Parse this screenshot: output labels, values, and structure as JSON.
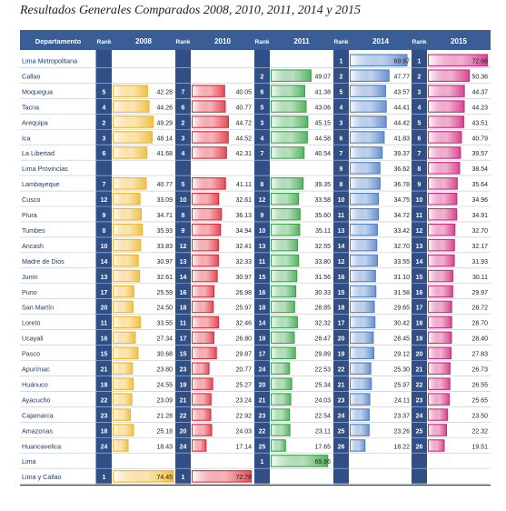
{
  "title": "Resultados Generales Comparados 2008, 2010, 2011, 2014 y 2015",
  "colors": {
    "header_bg": "#3a5d96",
    "header_text": "#ffffff",
    "band": "#2f4f86",
    "row_text": "#1f3a66",
    "2008": "#f0b52a",
    "2010": "#e02c3a",
    "2011": "#3aa548",
    "2014": "#4f7fc6",
    "2015": "#d0287c"
  },
  "chart_data": {
    "type": "table",
    "columns": [
      "Departamento",
      "Rank",
      "2008",
      "Rank",
      "2010",
      "Rank",
      "2011",
      "Rank",
      "2014",
      "Rank",
      "2015"
    ],
    "years": [
      "2008",
      "2010",
      "2011",
      "2014",
      "2015"
    ],
    "scale_max": 75,
    "rows": [
      {
        "name": "Lima Metropolitana",
        "cells": [
          null,
          null,
          null,
          {
            "rank": "1",
            "value": "69.97"
          },
          {
            "rank": "1",
            "value": "72.66"
          }
        ]
      },
      {
        "name": "Callao",
        "cells": [
          null,
          null,
          {
            "rank": "2",
            "value": "49.07"
          },
          {
            "rank": "2",
            "value": "47.77"
          },
          {
            "rank": "2",
            "value": "50.36"
          }
        ]
      },
      {
        "name": "Moquegua",
        "cells": [
          {
            "rank": "5",
            "value": "42.28"
          },
          {
            "rank": "7",
            "value": "40.05"
          },
          {
            "rank": "6",
            "value": "41.38"
          },
          {
            "rank": "5",
            "value": "43.57"
          },
          {
            "rank": "3",
            "value": "44.37"
          }
        ]
      },
      {
        "name": "Tacna",
        "cells": [
          {
            "rank": "4",
            "value": "44.26"
          },
          {
            "rank": "6",
            "value": "40.77"
          },
          {
            "rank": "5",
            "value": "43.06"
          },
          {
            "rank": "4",
            "value": "44.41"
          },
          {
            "rank": "4",
            "value": "44.23"
          }
        ]
      },
      {
        "name": "Arequipa",
        "cells": [
          {
            "rank": "2",
            "value": "49.29"
          },
          {
            "rank": "2",
            "value": "44.72"
          },
          {
            "rank": "3",
            "value": "45.15"
          },
          {
            "rank": "3",
            "value": "44.42"
          },
          {
            "rank": "5",
            "value": "43.51"
          }
        ]
      },
      {
        "name": "Ica",
        "cells": [
          {
            "rank": "3",
            "value": "48.14"
          },
          {
            "rank": "3",
            "value": "44.52"
          },
          {
            "rank": "4",
            "value": "44.58"
          },
          {
            "rank": "6",
            "value": "41.83"
          },
          {
            "rank": "6",
            "value": "40.79"
          }
        ]
      },
      {
        "name": "La Libertad",
        "cells": [
          {
            "rank": "6",
            "value": "41.68"
          },
          {
            "rank": "4",
            "value": "42.31"
          },
          {
            "rank": "7",
            "value": "40.54"
          },
          {
            "rank": "7",
            "value": "39.37"
          },
          {
            "rank": "7",
            "value": "39.57"
          }
        ]
      },
      {
        "name": "Lima Provincias",
        "cells": [
          null,
          null,
          null,
          {
            "rank": "9",
            "value": "36.62"
          },
          {
            "rank": "8",
            "value": "38.54"
          }
        ]
      },
      {
        "name": "Lambayeque",
        "cells": [
          {
            "rank": "7",
            "value": "40.77"
          },
          {
            "rank": "5",
            "value": "41.11"
          },
          {
            "rank": "8",
            "value": "39.35"
          },
          {
            "rank": "8",
            "value": "36.78"
          },
          {
            "rank": "9",
            "value": "35.64"
          }
        ]
      },
      {
        "name": "Cusco",
        "cells": [
          {
            "rank": "12",
            "value": "33.09"
          },
          {
            "rank": "10",
            "value": "32.61"
          },
          {
            "rank": "12",
            "value": "33.58"
          },
          {
            "rank": "10",
            "value": "34.75"
          },
          {
            "rank": "10",
            "value": "34.96"
          }
        ]
      },
      {
        "name": "Piura",
        "cells": [
          {
            "rank": "9",
            "value": "34.71"
          },
          {
            "rank": "8",
            "value": "36.13"
          },
          {
            "rank": "9",
            "value": "35.60"
          },
          {
            "rank": "11",
            "value": "34.72"
          },
          {
            "rank": "11",
            "value": "34.91"
          }
        ]
      },
      {
        "name": "Tumbes",
        "cells": [
          {
            "rank": "8",
            "value": "35.93"
          },
          {
            "rank": "9",
            "value": "34.94"
          },
          {
            "rank": "10",
            "value": "35.11"
          },
          {
            "rank": "13",
            "value": "33.42"
          },
          {
            "rank": "12",
            "value": "32.70"
          }
        ]
      },
      {
        "name": "Ancash",
        "cells": [
          {
            "rank": "10",
            "value": "33.83"
          },
          {
            "rank": "12",
            "value": "32.41"
          },
          {
            "rank": "13",
            "value": "32.55"
          },
          {
            "rank": "14",
            "value": "32.70"
          },
          {
            "rank": "13",
            "value": "32.17"
          }
        ]
      },
      {
        "name": "Madre de Dios",
        "cells": [
          {
            "rank": "14",
            "value": "30.97"
          },
          {
            "rank": "13",
            "value": "32.33"
          },
          {
            "rank": "11",
            "value": "33.80"
          },
          {
            "rank": "12",
            "value": "33.55"
          },
          {
            "rank": "14",
            "value": "31.93"
          }
        ]
      },
      {
        "name": "Junín",
        "cells": [
          {
            "rank": "13",
            "value": "32.61"
          },
          {
            "rank": "14",
            "value": "30.97"
          },
          {
            "rank": "15",
            "value": "31.56"
          },
          {
            "rank": "16",
            "value": "31.10"
          },
          {
            "rank": "15",
            "value": "30.11"
          }
        ]
      },
      {
        "name": "Puno",
        "cells": [
          {
            "rank": "17",
            "value": "25.59"
          },
          {
            "rank": "16",
            "value": "26.98"
          },
          {
            "rank": "16",
            "value": "30.33"
          },
          {
            "rank": "15",
            "value": "31.58"
          },
          {
            "rank": "16",
            "value": "29.97"
          }
        ]
      },
      {
        "name": "San Martín",
        "cells": [
          {
            "rank": "20",
            "value": "24.50"
          },
          {
            "rank": "18",
            "value": "25.97"
          },
          {
            "rank": "18",
            "value": "28.85"
          },
          {
            "rank": "18",
            "value": "29.65"
          },
          {
            "rank": "17",
            "value": "28.72"
          }
        ]
      },
      {
        "name": "Loreto",
        "cells": [
          {
            "rank": "11",
            "value": "33.55"
          },
          {
            "rank": "11",
            "value": "32.46"
          },
          {
            "rank": "14",
            "value": "32.32"
          },
          {
            "rank": "17",
            "value": "30.42"
          },
          {
            "rank": "18",
            "value": "28.70"
          }
        ]
      },
      {
        "name": "Ucayali",
        "cells": [
          {
            "rank": "16",
            "value": "27.34"
          },
          {
            "rank": "17",
            "value": "26.80"
          },
          {
            "rank": "19",
            "value": "28.47"
          },
          {
            "rank": "20",
            "value": "28.45"
          },
          {
            "rank": "19",
            "value": "28.40"
          }
        ]
      },
      {
        "name": "Pasco",
        "cells": [
          {
            "rank": "15",
            "value": "30.68"
          },
          {
            "rank": "15",
            "value": "29.87"
          },
          {
            "rank": "17",
            "value": "29.89"
          },
          {
            "rank": "19",
            "value": "29.12"
          },
          {
            "rank": "20",
            "value": "27.83"
          }
        ]
      },
      {
        "name": "Apurímac",
        "cells": [
          {
            "rank": "21",
            "value": "23.80"
          },
          {
            "rank": "23",
            "value": "20.77"
          },
          {
            "rank": "24",
            "value": "22.53"
          },
          {
            "rank": "22",
            "value": "25.30"
          },
          {
            "rank": "21",
            "value": "26.73"
          }
        ]
      },
      {
        "name": "Huánuco",
        "cells": [
          {
            "rank": "19",
            "value": "24.55"
          },
          {
            "rank": "19",
            "value": "25.27"
          },
          {
            "rank": "20",
            "value": "25.34"
          },
          {
            "rank": "21",
            "value": "25.97"
          },
          {
            "rank": "22",
            "value": "26.55"
          }
        ]
      },
      {
        "name": "Ayacucho",
        "cells": [
          {
            "rank": "22",
            "value": "23.09"
          },
          {
            "rank": "21",
            "value": "23.24"
          },
          {
            "rank": "21",
            "value": "24.03"
          },
          {
            "rank": "23",
            "value": "24.11"
          },
          {
            "rank": "23",
            "value": "25.65"
          }
        ]
      },
      {
        "name": "Cajamarca",
        "cells": [
          {
            "rank": "23",
            "value": "21.28"
          },
          {
            "rank": "22",
            "value": "22.92"
          },
          {
            "rank": "23",
            "value": "22.54"
          },
          {
            "rank": "24",
            "value": "23.37"
          },
          {
            "rank": "24",
            "value": "23.50"
          }
        ]
      },
      {
        "name": "Amazonas",
        "cells": [
          {
            "rank": "18",
            "value": "25.18"
          },
          {
            "rank": "20",
            "value": "24.03"
          },
          {
            "rank": "22",
            "value": "23.11"
          },
          {
            "rank": "25",
            "value": "23.26"
          },
          {
            "rank": "25",
            "value": "22.32"
          }
        ]
      },
      {
        "name": "Huancavelica",
        "cells": [
          {
            "rank": "24",
            "value": "18.43"
          },
          {
            "rank": "24",
            "value": "17.14"
          },
          {
            "rank": "25",
            "value": "17.65"
          },
          {
            "rank": "26",
            "value": "18.22"
          },
          {
            "rank": "26",
            "value": "19.51"
          }
        ]
      },
      {
        "name": "Lima",
        "cells": [
          null,
          null,
          {
            "rank": "1",
            "value": "69.66"
          },
          null,
          null
        ]
      },
      {
        "name": "Lima y Callao",
        "cells": [
          {
            "rank": "1",
            "value": "74.45"
          },
          {
            "rank": "1",
            "value": "72.78"
          },
          null,
          null,
          null
        ]
      }
    ]
  }
}
